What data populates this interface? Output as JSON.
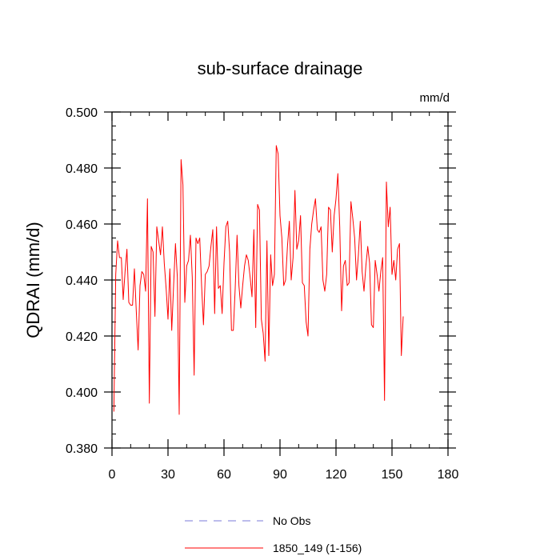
{
  "chart_data": {
    "type": "line",
    "title": "sub-surface drainage",
    "units": "mm/d",
    "ylabel": "QDRAI  (mm/d)",
    "xlabel": "",
    "xlim": [
      0,
      180
    ],
    "ylim": [
      0.38,
      0.5
    ],
    "x_ticks": [
      0,
      30,
      60,
      90,
      120,
      150,
      180
    ],
    "x_tick_labels": [
      "0",
      "30",
      "60",
      "90",
      "120",
      "150",
      "180"
    ],
    "y_ticks": [
      0.38,
      0.4,
      0.42,
      0.44,
      0.46,
      0.48,
      0.5
    ],
    "y_tick_labels": [
      "0.380",
      "0.400",
      "0.420",
      "0.440",
      "0.460",
      "0.480",
      "0.500"
    ],
    "legend": [
      {
        "name": "No Obs",
        "color": "#7a7ad8",
        "dash": true
      },
      {
        "name": "1850_149 (1-156)",
        "color": "#ff0000",
        "dash": false
      }
    ],
    "series": [
      {
        "name": "1850_149 (1-156)",
        "color": "#ff0000",
        "x_start": 1,
        "values": [
          0.393,
          0.442,
          0.454,
          0.448,
          0.448,
          0.433,
          0.443,
          0.451,
          0.432,
          0.431,
          0.431,
          0.444,
          0.429,
          0.415,
          0.438,
          0.443,
          0.442,
          0.436,
          0.469,
          0.396,
          0.452,
          0.45,
          0.427,
          0.459,
          0.454,
          0.449,
          0.459,
          0.446,
          0.437,
          0.426,
          0.444,
          0.422,
          0.438,
          0.453,
          0.441,
          0.392,
          0.483,
          0.474,
          0.432,
          0.445,
          0.447,
          0.456,
          0.441,
          0.406,
          0.455,
          0.453,
          0.455,
          0.438,
          0.424,
          0.442,
          0.443,
          0.445,
          0.452,
          0.458,
          0.428,
          0.459,
          0.437,
          0.438,
          0.428,
          0.446,
          0.459,
          0.461,
          0.45,
          0.422,
          0.422,
          0.437,
          0.456,
          0.438,
          0.43,
          0.438,
          0.445,
          0.449,
          0.447,
          0.441,
          0.434,
          0.458,
          0.423,
          0.467,
          0.465,
          0.426,
          0.421,
          0.411,
          0.454,
          0.413,
          0.449,
          0.438,
          0.442,
          0.488,
          0.485,
          0.463,
          0.455,
          0.438,
          0.44,
          0.452,
          0.461,
          0.44,
          0.448,
          0.472,
          0.451,
          0.454,
          0.463,
          0.439,
          0.438,
          0.425,
          0.42,
          0.451,
          0.46,
          0.465,
          0.469,
          0.458,
          0.457,
          0.459,
          0.44,
          0.436,
          0.442,
          0.466,
          0.465,
          0.45,
          0.463,
          0.469,
          0.478,
          0.459,
          0.429,
          0.445,
          0.447,
          0.438,
          0.439,
          0.468,
          0.462,
          0.455,
          0.44,
          0.449,
          0.461,
          0.443,
          0.436,
          0.445,
          0.452,
          0.446,
          0.424,
          0.423,
          0.447,
          0.442,
          0.436,
          0.443,
          0.448,
          0.397,
          0.475,
          0.459,
          0.466,
          0.442,
          0.447,
          0.44,
          0.451,
          0.453,
          0.413,
          0.427
        ]
      }
    ]
  }
}
